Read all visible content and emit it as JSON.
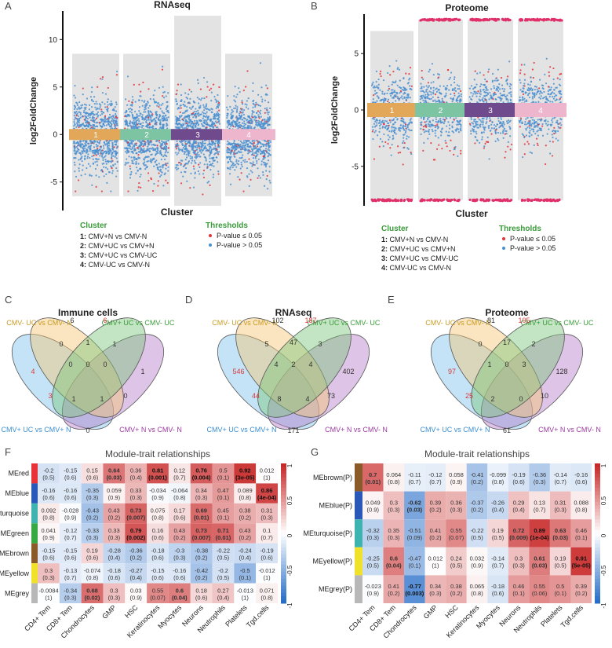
{
  "figure": {
    "panel_letters": [
      "A",
      "B",
      "C",
      "D",
      "E",
      "F",
      "G"
    ],
    "cluster_colors": [
      "#e3a75a",
      "#7dc4a3",
      "#6f4a8c",
      "#eeb6cc"
    ],
    "sig_color": "#e0333a",
    "nonsig_color": "#4a8fd0"
  },
  "chart_data": [
    {
      "type": "scatter",
      "panel": "A",
      "title": "RNAseq",
      "ylabel": "log2FoldChange",
      "xlabel": "Cluster",
      "ylim": [
        -8,
        13
      ],
      "yticks": [
        -5,
        0,
        5,
        10
      ],
      "categories": [
        "1",
        "2",
        "3",
        "4"
      ],
      "band_range": [
        [
          -6.5,
          8.5
        ],
        [
          -6.5,
          8.5
        ],
        [
          -7.5,
          12.5
        ],
        [
          -6.5,
          8.5
        ]
      ],
      "max_abs": [
        [
          8,
          -7
        ],
        [
          8,
          -7
        ],
        [
          12,
          -8
        ],
        [
          8,
          -7
        ]
      ],
      "legend_cluster_title": "Cluster",
      "legend_cluster": [
        "1: CMV+N vs CMV-N",
        "2: CMV+UC vs CMV+N",
        "3: CMV+UC vs CMV-UC",
        "4: CMV-UC vs CMV-N"
      ],
      "legend_threshold_title": "Thresholds",
      "legend_threshold": [
        "P-value ≤ 0.05",
        "P-value > 0.05"
      ]
    },
    {
      "type": "scatter",
      "panel": "B",
      "title": "Proteome",
      "ylabel": "log2FoldChange",
      "xlabel": "Cluster",
      "ylim": [
        -8.5,
        8.5
      ],
      "yticks": [
        -5,
        0,
        5
      ],
      "categories": [
        "1",
        "2",
        "3",
        "4"
      ],
      "band_range": [
        [
          -8,
          7
        ],
        [
          -8,
          8
        ],
        [
          -8,
          8
        ],
        [
          -8,
          8
        ]
      ],
      "max_abs": [
        [
          7,
          -8
        ],
        [
          8,
          -8
        ],
        [
          8,
          -8
        ],
        [
          8,
          -8
        ]
      ],
      "legend_cluster_title": "Cluster",
      "legend_cluster": [
        "1: CMV+N vs CMV-N",
        "2: CMV+UC vs CMV+N",
        "3: CMV+UC vs CMV-UC",
        "4: CMV-UC vs CMV-N"
      ],
      "legend_threshold_title": "Thresholds",
      "legend_threshold": [
        "P-value ≤ 0.05",
        "P-value > 0.05"
      ]
    }
  ],
  "venn": [
    {
      "panel": "C",
      "title": "Immune cells",
      "set_labels": [
        "CMV- UC vs CMV- N",
        "CMV+ UC vs CMV- UC",
        "CMV+ UC vs CMV+ N",
        "CMV+ N vs CMV- N"
      ],
      "counts": [
        "6",
        "6",
        "4",
        "1",
        "0",
        "1",
        "1",
        "0",
        "0",
        "0",
        "3",
        "0",
        "1",
        "1",
        "0"
      ]
    },
    {
      "panel": "D",
      "title": "RNAseq",
      "set_labels": [
        "CMV- UC vs CMV- N",
        "CMV+ UC vs CMV- UC",
        "CMV+ UC vs CMV+ N",
        "CMV+ N vs CMV- N"
      ],
      "counts": [
        "102",
        "187",
        "546",
        "402",
        "5",
        "47",
        "3",
        "4",
        "2",
        "4",
        "44",
        "73",
        "8",
        "4",
        "171"
      ]
    },
    {
      "panel": "E",
      "title": "Proteome",
      "set_labels": [
        "CMV- UC vs CMV- N",
        "CMV+ UC vs CMV- UC",
        "CMV+ UC vs CMV+ N",
        "CMV+ N vs CMV- N"
      ],
      "counts": [
        "81",
        "105",
        "97",
        "128",
        "0",
        "17",
        "2",
        "1",
        "0",
        "3",
        "25",
        "10",
        "2",
        "0",
        "61"
      ]
    }
  ],
  "heatmaps": [
    {
      "panel": "F",
      "title": "Module-trait relationships",
      "rows": [
        "MEred",
        "MEblue",
        "MEturquoise",
        "MEgreen",
        "MEbrown",
        "MEyellow",
        "MEgrey"
      ],
      "row_colors": [
        "#e8323a",
        "#2a58b8",
        "#3fb3b0",
        "#36a844",
        "#8a5a2a",
        "#f0e22a",
        "#b8b8b8"
      ],
      "cols": [
        "CD4+ Tem",
        "CD8+ Tem",
        "Chondrocytes",
        "GMP",
        "HSC",
        "Keratinocytes",
        "Myocytes",
        "Neurons",
        "Neutrophils",
        "Platelets",
        "Tgd.cells"
      ],
      "values": [
        [
          "-0.2",
          "-0.15",
          "0.15",
          "0.64",
          "0.36",
          "0.81",
          "0.12",
          "0.76",
          "0.5",
          "0.92",
          "0.012"
        ],
        [
          "-0.16",
          "-0.16",
          "-0.35",
          "0.059",
          "0.33",
          "-0.034",
          "-0.064",
          "0.34",
          "0.47",
          "0.089",
          "0.86"
        ],
        [
          "0.092",
          "-0.028",
          "-0.43",
          "0.43",
          "0.73",
          "0.075",
          "0.17",
          "0.69",
          "0.45",
          "0.38",
          "0.31"
        ],
        [
          "0.041",
          "-0.12",
          "-0.33",
          "0.33",
          "0.79",
          "0.16",
          "0.43",
          "0.73",
          "0.71",
          "0.43",
          "0.1"
        ],
        [
          "-0.15",
          "-0.15",
          "0.19",
          "-0.28",
          "-0.36",
          "-0.18",
          "-0.3",
          "-0.38",
          "-0.22",
          "-0.24",
          "-0.19"
        ],
        [
          "0.3",
          "-0.13",
          "-0.074",
          "-0.18",
          "-0.27",
          "-0.15",
          "-0.16",
          "-0.42",
          "-0.2",
          "-0.5",
          "-0.012"
        ],
        [
          "-0.0084",
          "-0.34",
          "0.68",
          "0.3",
          "0.03",
          "0.55",
          "0.6",
          "0.18",
          "0.27",
          "-0.013",
          "0.071"
        ]
      ],
      "pvalues": [
        [
          "(0.5)",
          "(0.6)",
          "(0.6)",
          "(0.03)",
          "(0.4)",
          "(0.001)",
          "(0.7)",
          "(0.004)",
          "(0.1)",
          "(3e-05)",
          "(1)"
        ],
        [
          "(0.6)",
          "(0.6)",
          "(0.3)",
          "(0.9)",
          "(0.3)",
          "(0.9)",
          "(0.8)",
          "(0.3)",
          "(0.1)",
          "(0.8)",
          "(4e-04)"
        ],
        [
          "(0.8)",
          "(0.9)",
          "(0.2)",
          "(0.2)",
          "(0.007)",
          "(0.8)",
          "(0.6)",
          "(0.01)",
          "(0.1)",
          "(0.2)",
          "(0.3)"
        ],
        [
          "(0.9)",
          "(0.7)",
          "(0.3)",
          "(0.3)",
          "(0.002)",
          "(0.6)",
          "(0.2)",
          "(0.007)",
          "(0.01)",
          "(0.2)",
          "(0.7)"
        ],
        [
          "(0.6)",
          "(0.6)",
          "(0.6)",
          "(0.4)",
          "(0.2)",
          "(0.6)",
          "(0.3)",
          "(0.2)",
          "(0.5)",
          "(0.4)",
          "(0.6)"
        ],
        [
          "(0.3)",
          "(0.7)",
          "(0.8)",
          "(0.6)",
          "(0.4)",
          "(0.6)",
          "(0.6)",
          "(0.2)",
          "(0.5)",
          "(0.1)",
          "(1)"
        ],
        [
          "(1)",
          "(0.3)",
          "(0.02)",
          "(0.3)",
          "(0.9)",
          "(0.07)",
          "(0.04)",
          "(0.6)",
          "(0.4)",
          "(1)",
          "(0.8)"
        ]
      ],
      "bold": [
        [
          0,
          3
        ],
        [
          0,
          5
        ],
        [
          0,
          7
        ],
        [
          0,
          9
        ],
        [
          1,
          10
        ],
        [
          2,
          4
        ],
        [
          2,
          7
        ],
        [
          3,
          4
        ],
        [
          3,
          7
        ],
        [
          3,
          8
        ],
        [
          6,
          2
        ],
        [
          6,
          6
        ]
      ],
      "scale_ticks": [
        "1",
        "0.5",
        "0",
        "-0.5",
        "-1"
      ]
    },
    {
      "panel": "G",
      "title": "Module-trait relationships",
      "rows": [
        "MEbrown(P)",
        "MEblue(P)",
        "MEturquoise(P)",
        "MEyellow(P)",
        "MEgrey(P)"
      ],
      "row_colors": [
        "#8a5a2a",
        "#2a58b8",
        "#3fb3b0",
        "#f0e22a",
        "#b8b8b8"
      ],
      "cols": [
        "CD4+ Tem",
        "CD8+ Tem",
        "Chondrocytes",
        "GMP",
        "HSC",
        "Keratinocytes",
        "Myocytes",
        "Neurons",
        "Neutrophils",
        "Platelets",
        "Tgd.cells"
      ],
      "values": [
        [
          "0.7",
          "0.064",
          "-0.11",
          "-0.12",
          "0.058",
          "-0.41",
          "-0.099",
          "-0.19",
          "-0.36",
          "-0.14",
          "-0.16"
        ],
        [
          "0.049",
          "0.3",
          "-0.62",
          "0.39",
          "0.36",
          "-0.37",
          "-0.26",
          "0.29",
          "0.13",
          "0.31",
          "0.088"
        ],
        [
          "-0.32",
          "0.35",
          "-0.51",
          "0.41",
          "0.55",
          "-0.22",
          "0.19",
          "0.72",
          "0.89",
          "0.63",
          "0.46"
        ],
        [
          "-0.25",
          "0.6",
          "-0.47",
          "0.012",
          "0.24",
          "0.032",
          "-0.14",
          "0.3",
          "0.61",
          "0.19",
          "0.91"
        ],
        [
          "-0.023",
          "0.41",
          "-0.77",
          "0.34",
          "0.38",
          "0.065",
          "-0.18",
          "0.46",
          "0.55",
          "0.5",
          "0.39"
        ]
      ],
      "pvalues": [
        [
          "(0.01)",
          "(0.8)",
          "(0.7)",
          "(0.7)",
          "(0.9)",
          "(0.2)",
          "(0.8)",
          "(0.6)",
          "(0.3)",
          "(0.7)",
          "(0.6)"
        ],
        [
          "(0.9)",
          "(0.3)",
          "(0.03)",
          "(0.2)",
          "(0.3)",
          "(0.2)",
          "(0.4)",
          "(0.4)",
          "(0.7)",
          "(0.3)",
          "(0.8)"
        ],
        [
          "(0.3)",
          "(0.3)",
          "(0.09)",
          "(0.2)",
          "(0.07)",
          "(0.5)",
          "(0.5)",
          "(0.009)",
          "(1e-04)",
          "(0.03)",
          "(0.1)"
        ],
        [
          "(0.5)",
          "(0.04)",
          "(0.1)",
          "(1)",
          "(0.5)",
          "(0.9)",
          "(0.7)",
          "(0.3)",
          "(0.03)",
          "(0.5)",
          "(5e-05)"
        ],
        [
          "(0.9)",
          "(0.2)",
          "(0.003)",
          "(0.3)",
          "(0.2)",
          "(0.8)",
          "(0.6)",
          "(0.1)",
          "(0.06)",
          "(0.1)",
          "(0.2)"
        ]
      ],
      "bold": [
        [
          0,
          0
        ],
        [
          1,
          2
        ],
        [
          2,
          7
        ],
        [
          2,
          8
        ],
        [
          2,
          9
        ],
        [
          3,
          1
        ],
        [
          3,
          8
        ],
        [
          3,
          10
        ],
        [
          4,
          2
        ]
      ],
      "scale_ticks": [
        "1",
        "0.5",
        "0",
        "-0.5",
        "-1"
      ]
    }
  ]
}
